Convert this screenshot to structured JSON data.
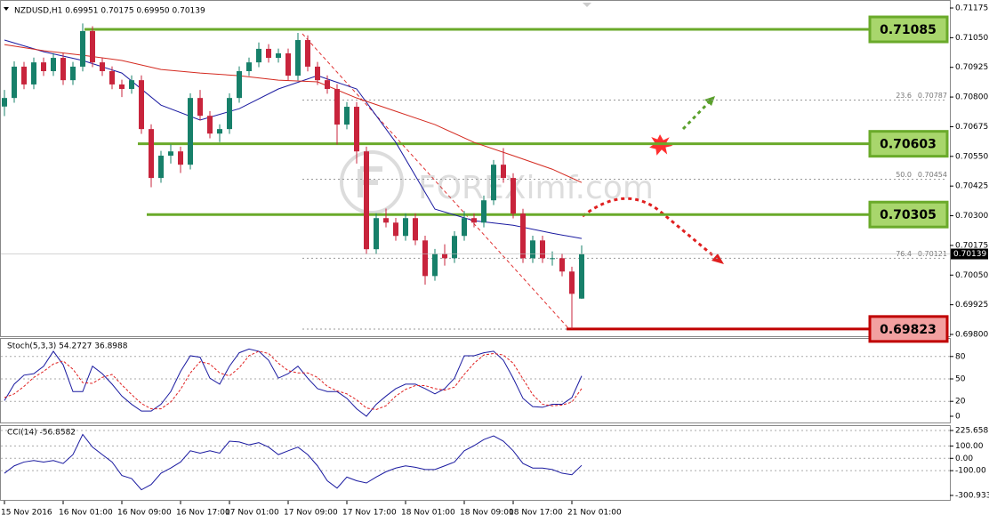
{
  "chart_data": [
    {
      "type": "candlestick",
      "title": "NZDUSD,H1  0.69951 0.70175 0.69950 0.70139",
      "watermark": "FOREXimf.com",
      "categories": [
        "15 Nov 2016",
        null,
        null,
        null,
        null,
        null,
        "16 Nov 01:00",
        null,
        null,
        null,
        null,
        null,
        "16 Nov 09:00",
        null,
        null,
        null,
        null,
        null,
        "16 Nov 17:00",
        null,
        null,
        null,
        null,
        "17 Nov 01:00",
        null,
        null,
        null,
        null,
        null,
        "17 Nov 09:00",
        null,
        null,
        null,
        null,
        null,
        "17 Nov 17:00",
        null,
        null,
        null,
        null,
        null,
        "18 Nov 01:00",
        null,
        null,
        null,
        null,
        null,
        "18 Nov 09:00",
        null,
        null,
        null,
        null,
        "18 Nov 17:00",
        null,
        null,
        null,
        null,
        null,
        "21 Nov 01:00",
        null
      ],
      "open": [
        0.7076,
        0.70796,
        0.70928,
        0.70853,
        0.70946,
        0.70909,
        0.70965,
        0.70871,
        0.70928,
        0.71078,
        0.70946,
        0.70909,
        0.70853,
        0.70834,
        0.70871,
        0.70665,
        0.70459,
        0.70553,
        0.70571,
        0.70515,
        0.70796,
        0.70721,
        0.70646,
        0.70665,
        0.70796,
        0.70909,
        0.70946,
        0.71003,
        0.70965,
        0.70984,
        0.7089,
        0.7104,
        0.70928,
        0.70871,
        0.70834,
        0.70684,
        0.70759,
        0.70571,
        0.70159,
        0.7029,
        0.70271,
        0.70215,
        0.7029,
        0.70196,
        0.70046,
        0.7014,
        0.70121,
        0.70215,
        0.7029,
        0.70271,
        0.70365,
        0.70515,
        0.70459,
        0.70309,
        0.70121,
        0.70196,
        0.70121,
        0.70121,
        0.70065,
        0.69951
      ],
      "high": [
        0.7083,
        0.7095,
        0.70948,
        0.70966,
        0.70966,
        0.70985,
        0.70985,
        0.70948,
        0.7111,
        0.71098,
        0.70966,
        0.70929,
        0.70873,
        0.70891,
        0.70891,
        0.70685,
        0.70573,
        0.706,
        0.70591,
        0.70816,
        0.7083,
        0.70741,
        0.70685,
        0.70816,
        0.70929,
        0.70966,
        0.7103,
        0.71023,
        0.71004,
        0.71004,
        0.7107,
        0.7106,
        0.70948,
        0.70891,
        0.70854,
        0.70779,
        0.70779,
        0.70591,
        0.7031,
        0.7033,
        0.70291,
        0.7031,
        0.7031,
        0.70216,
        0.7016,
        0.7018,
        0.70235,
        0.7032,
        0.7031,
        0.70385,
        0.70535,
        0.70585,
        0.70479,
        0.70329,
        0.70216,
        0.70216,
        0.7015,
        0.70141,
        0.70085,
        0.70175
      ],
      "low": [
        0.7072,
        0.70776,
        0.70833,
        0.70833,
        0.70889,
        0.70889,
        0.70851,
        0.70851,
        0.70908,
        0.70926,
        0.70889,
        0.70833,
        0.708,
        0.70814,
        0.70645,
        0.7042,
        0.70439,
        0.7052,
        0.7048,
        0.70495,
        0.70701,
        0.70626,
        0.7061,
        0.70645,
        0.70776,
        0.70889,
        0.70926,
        0.70945,
        0.70945,
        0.7087,
        0.7087,
        0.70908,
        0.70851,
        0.70814,
        0.706,
        0.70664,
        0.7052,
        0.70139,
        0.70139,
        0.70251,
        0.70195,
        0.70195,
        0.70176,
        0.7001,
        0.70026,
        0.7009,
        0.70101,
        0.70195,
        0.70251,
        0.70251,
        0.70345,
        0.70439,
        0.70289,
        0.70101,
        0.70101,
        0.70101,
        0.7009,
        0.70045,
        0.69823,
        0.6995
      ],
      "close": [
        0.70796,
        0.70928,
        0.70853,
        0.70946,
        0.70909,
        0.70965,
        0.70871,
        0.70928,
        0.71078,
        0.70946,
        0.70909,
        0.70853,
        0.70834,
        0.70871,
        0.70665,
        0.70459,
        0.70553,
        0.70571,
        0.70515,
        0.70796,
        0.70721,
        0.70646,
        0.70665,
        0.70796,
        0.70909,
        0.70946,
        0.71003,
        0.70965,
        0.70984,
        0.7089,
        0.7104,
        0.70928,
        0.70871,
        0.70834,
        0.70684,
        0.70759,
        0.70571,
        0.70159,
        0.7029,
        0.70271,
        0.70215,
        0.7029,
        0.70196,
        0.70046,
        0.7014,
        0.70121,
        0.70215,
        0.7029,
        0.70271,
        0.70365,
        0.70515,
        0.70459,
        0.70309,
        0.70121,
        0.70196,
        0.70121,
        0.70121,
        0.70065,
        0.69971,
        0.70139
      ],
      "up_color": "#17806a",
      "down_color": "#c8243c",
      "overlays": [
        {
          "color": "#1a1aa0",
          "x": [
            0,
            4,
            8,
            12,
            16,
            20,
            24,
            28,
            32,
            36,
            40,
            44,
            48,
            52,
            56,
            59
          ],
          "values": [
            0.7104,
            0.70991,
            0.70954,
            0.70901,
            0.70766,
            0.70703,
            0.70751,
            0.70834,
            0.7089,
            0.70834,
            0.70609,
            0.70328,
            0.70279,
            0.7026,
            0.70226,
            0.70204
          ]
        },
        {
          "color": "#d42a20",
          "x": [
            0,
            4,
            8,
            12,
            16,
            20,
            24,
            28,
            32,
            36,
            40,
            44,
            48,
            52,
            56,
            59
          ],
          "values": [
            0.71021,
            0.70995,
            0.70976,
            0.70954,
            0.70916,
            0.70901,
            0.7089,
            0.70871,
            0.70864,
            0.70796,
            0.7074,
            0.70684,
            0.70609,
            0.70553,
            0.70496,
            0.7044
          ]
        }
      ],
      "levels": [
        {
          "value": 0.71085,
          "color": "#6aaa2a",
          "fill": "#a8d66c"
        },
        {
          "value": 0.70603,
          "color": "#6aaa2a",
          "fill": "#a8d66c"
        },
        {
          "value": 0.70305,
          "color": "#6aaa2a",
          "fill": "#a8d66c"
        },
        {
          "value": 0.69823,
          "color": "#c00000",
          "fill": "#f2a0a0"
        }
      ],
      "fib": [
        {
          "ratio": 23.6,
          "value": 0.70787
        },
        {
          "ratio": {
            "value": 50,
            "label": "50.0"
          },
          "value": 0.70454
        },
        {
          "ratio": 76.4,
          "value": 0.70121
        }
      ],
      "ylim": [
        0.698,
        0.71175
      ],
      "yticks": [
        0.71175,
        {
          "value": 0.7105,
          "label": "0.71050"
        },
        0.70925,
        {
          "value": 0.708,
          "label": "0.70800"
        },
        0.70675,
        {
          "value": 0.7055,
          "label": "0.70550"
        },
        0.70425,
        {
          "value": 0.703,
          "label": "0.70300"
        },
        0.70175,
        {
          "value": 0.7005,
          "label": "0.70050"
        },
        0.69925,
        {
          "value": 0.698,
          "label": "0.69800"
        }
      ]
    },
    {
      "type": "line",
      "title": "Stoch(5,3,3) 54.2727 36.8988",
      "series": [
        {
          "color": "#1a1aa0",
          "values": [
            21,
            43,
            55,
            57,
            67,
            87,
            69,
            33,
            33,
            67,
            57,
            43,
            27,
            16,
            7,
            7,
            16,
            33,
            60,
            81,
            79,
            51,
            43,
            67,
            85,
            90,
            87,
            75,
            51,
            57,
            67,
            51,
            37,
            33,
            33,
            24,
            10,
            0,
            16,
            27,
            37,
            43,
            43,
            37,
            30,
            37,
            51,
            81,
            81,
            85,
            87,
            75,
            51,
            24,
            13,
            12,
            16,
            16,
            25,
            54
          ]
        },
        {
          "color": "#e02020",
          "dashed": true,
          "values": [
            25,
            30,
            40,
            52,
            60,
            70,
            74,
            63,
            45,
            44,
            52,
            56,
            42,
            29,
            17,
            10,
            10,
            19,
            36,
            58,
            73,
            70,
            58,
            54,
            65,
            81,
            87,
            84,
            71,
            61,
            58,
            58,
            52,
            40,
            34,
            30,
            22,
            11,
            9,
            14,
            27,
            36,
            41,
            41,
            37,
            35,
            39,
            56,
            71,
            82,
            84,
            82,
            71,
            50,
            29,
            16,
            14,
            15,
            19,
            37
          ]
        }
      ],
      "ylim": [
        0,
        100
      ],
      "yticks": [
        0,
        20,
        50,
        80
      ]
    },
    {
      "type": "line",
      "title": "CCI(14) -56.8582",
      "series": [
        {
          "color": "#1a1aa0",
          "values": [
            -121,
            -61,
            -30,
            -18,
            -30,
            -18,
            -42,
            30,
            194,
            91,
            30,
            -30,
            -139,
            -164,
            -255,
            -212,
            -121,
            -79,
            -30,
            61,
            42,
            61,
            42,
            139,
            133,
            109,
            127,
            91,
            30,
            61,
            91,
            30,
            -61,
            -182,
            -242,
            -152,
            -182,
            -200,
            -152,
            -109,
            -79,
            -61,
            -73,
            -91,
            -91,
            -61,
            -30,
            61,
            103,
            152,
            182,
            139,
            61,
            -42,
            -79,
            -79,
            -91,
            -121,
            -133,
            -57
          ]
        }
      ],
      "ylim": [
        -300.933,
        225.6581
      ],
      "yticks": [
        225.6581,
        {
          "value": 100,
          "label": "100.00"
        },
        {
          "value": 0,
          "label": "0.00"
        },
        {
          "value": -100,
          "label": "-100.00"
        },
        -300.933
      ]
    }
  ]
}
